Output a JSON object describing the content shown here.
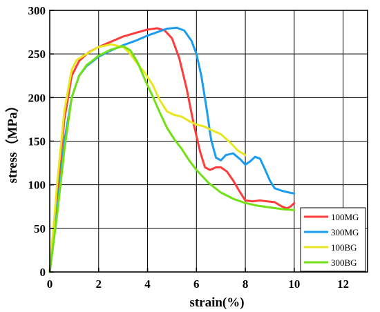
{
  "chart_data": {
    "type": "line",
    "xlabel": "strain(%)",
    "ylabel": "stress（MPa）",
    "xlim": [
      0,
      13
    ],
    "ylim": [
      0,
      300
    ],
    "xticks": [
      0,
      2,
      4,
      6,
      8,
      10,
      12
    ],
    "yticks": [
      0,
      50,
      100,
      150,
      200,
      250,
      300
    ],
    "grid": true,
    "legend_position": "bottom-right",
    "series": [
      {
        "name": "100MG",
        "color": "#ff3b3b",
        "points": [
          [
            0,
            0
          ],
          [
            0.3,
            90
          ],
          [
            0.6,
            175
          ],
          [
            0.9,
            225
          ],
          [
            1.2,
            242
          ],
          [
            1.6,
            252
          ],
          [
            2.0,
            258
          ],
          [
            2.5,
            264
          ],
          [
            3.0,
            270
          ],
          [
            3.5,
            274
          ],
          [
            4.0,
            278
          ],
          [
            4.4,
            279.5
          ],
          [
            4.7,
            277
          ],
          [
            5.0,
            268
          ],
          [
            5.3,
            245
          ],
          [
            5.6,
            210
          ],
          [
            5.9,
            168
          ],
          [
            6.15,
            138
          ],
          [
            6.35,
            120
          ],
          [
            6.55,
            117
          ],
          [
            6.8,
            120
          ],
          [
            7.0,
            120
          ],
          [
            7.25,
            115
          ],
          [
            7.5,
            105
          ],
          [
            7.75,
            93
          ],
          [
            8.0,
            82
          ],
          [
            8.3,
            81
          ],
          [
            8.6,
            82
          ],
          [
            8.9,
            81
          ],
          [
            9.2,
            80
          ],
          [
            9.5,
            75
          ],
          [
            9.7,
            73
          ],
          [
            9.85,
            75
          ],
          [
            10.0,
            79
          ]
        ]
      },
      {
        "name": "300MG",
        "color": "#1a9cf0",
        "points": [
          [
            0,
            0
          ],
          [
            0.3,
            70
          ],
          [
            0.6,
            150
          ],
          [
            0.9,
            200
          ],
          [
            1.2,
            225
          ],
          [
            1.5,
            236
          ],
          [
            2.0,
            247
          ],
          [
            2.5,
            254
          ],
          [
            3.0,
            260
          ],
          [
            3.5,
            265
          ],
          [
            4.0,
            271
          ],
          [
            4.5,
            276
          ],
          [
            4.8,
            279
          ],
          [
            5.2,
            280
          ],
          [
            5.5,
            277
          ],
          [
            5.8,
            265
          ],
          [
            6.0,
            250
          ],
          [
            6.2,
            225
          ],
          [
            6.4,
            190
          ],
          [
            6.6,
            152
          ],
          [
            6.8,
            131
          ],
          [
            7.0,
            128
          ],
          [
            7.2,
            134
          ],
          [
            7.5,
            136
          ],
          [
            7.8,
            129
          ],
          [
            8.0,
            123
          ],
          [
            8.2,
            127
          ],
          [
            8.4,
            132
          ],
          [
            8.6,
            130
          ],
          [
            8.8,
            118
          ],
          [
            9.0,
            105
          ],
          [
            9.2,
            96
          ],
          [
            9.5,
            93
          ],
          [
            9.8,
            91
          ],
          [
            10.0,
            90
          ]
        ]
      },
      {
        "name": "100BG",
        "color": "#e8e61e",
        "points": [
          [
            0,
            0
          ],
          [
            0.3,
            100
          ],
          [
            0.6,
            185
          ],
          [
            0.9,
            232
          ],
          [
            1.1,
            243
          ],
          [
            1.5,
            250
          ],
          [
            2.0,
            258
          ],
          [
            2.5,
            261
          ],
          [
            3.0,
            258
          ],
          [
            3.3,
            250
          ],
          [
            3.6,
            238
          ],
          [
            3.9,
            228
          ],
          [
            4.2,
            215
          ],
          [
            4.5,
            197
          ],
          [
            4.8,
            184
          ],
          [
            5.1,
            180
          ],
          [
            5.4,
            178
          ],
          [
            5.7,
            173
          ],
          [
            6.0,
            169
          ],
          [
            6.3,
            167
          ],
          [
            6.6,
            163
          ],
          [
            7.0,
            158
          ],
          [
            7.4,
            148
          ],
          [
            7.7,
            139
          ],
          [
            8.0,
            134
          ]
        ]
      },
      {
        "name": "300BG",
        "color": "#72e016",
        "points": [
          [
            0,
            0
          ],
          [
            0.3,
            65
          ],
          [
            0.6,
            140
          ],
          [
            0.9,
            200
          ],
          [
            1.2,
            225
          ],
          [
            1.5,
            237
          ],
          [
            2.0,
            248
          ],
          [
            2.5,
            255
          ],
          [
            3.0,
            259
          ],
          [
            3.3,
            254
          ],
          [
            3.6,
            240
          ],
          [
            3.9,
            220
          ],
          [
            4.2,
            202
          ],
          [
            4.5,
            183
          ],
          [
            4.8,
            165
          ],
          [
            5.1,
            152
          ],
          [
            5.4,
            141
          ],
          [
            5.7,
            128
          ],
          [
            6.0,
            117
          ],
          [
            6.5,
            102
          ],
          [
            7.0,
            91
          ],
          [
            7.5,
            84
          ],
          [
            8.0,
            79
          ],
          [
            8.5,
            76
          ],
          [
            9.0,
            74
          ],
          [
            9.5,
            72
          ],
          [
            10.0,
            71
          ]
        ]
      }
    ]
  }
}
